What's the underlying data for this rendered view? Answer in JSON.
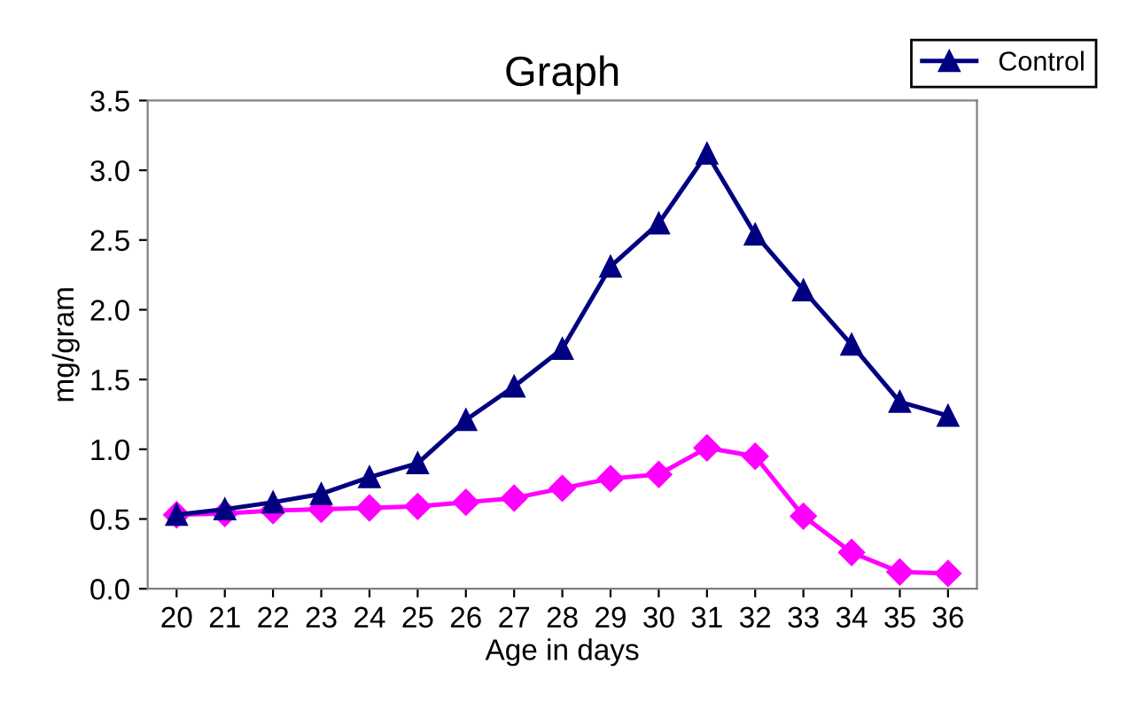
{
  "chart_data": {
    "type": "line",
    "title": "Graph",
    "xlabel": "Age in days",
    "ylabel": "mg/gram",
    "categories": [
      "20",
      "21",
      "22",
      "23",
      "24",
      "25",
      "26",
      "27",
      "28",
      "29",
      "30",
      "31",
      "32",
      "33",
      "34",
      "35",
      "36"
    ],
    "series": [
      {
        "name": "Control",
        "color": "#000080",
        "marker": "triangle",
        "values": [
          0.53,
          0.57,
          0.62,
          0.68,
          0.8,
          0.9,
          1.21,
          1.45,
          1.72,
          2.31,
          2.62,
          3.12,
          2.54,
          2.14,
          1.75,
          1.34,
          1.24
        ]
      },
      {
        "color": "#ff00ff",
        "marker": "diamond",
        "values": [
          0.53,
          0.54,
          0.56,
          0.57,
          0.58,
          0.59,
          0.62,
          0.65,
          0.72,
          0.79,
          0.82,
          1.01,
          0.95,
          0.52,
          0.26,
          0.12,
          0.11
        ]
      }
    ],
    "ylim": [
      0,
      3.5
    ],
    "yticks": [
      {
        "value": 0,
        "label": "0.0"
      },
      {
        "value": 0.5,
        "label": "0.5"
      },
      {
        "value": 1,
        "label": "1.0"
      },
      {
        "value": 1.5,
        "label": "1.5"
      },
      {
        "value": 2,
        "label": "2.0"
      },
      {
        "value": 2.5,
        "label": "2.5"
      },
      {
        "value": 3,
        "label": "3.0"
      },
      {
        "value": 3.5,
        "label": "3.5"
      }
    ],
    "grid": false,
    "legend": "top right",
    "line_style": "solid"
  }
}
